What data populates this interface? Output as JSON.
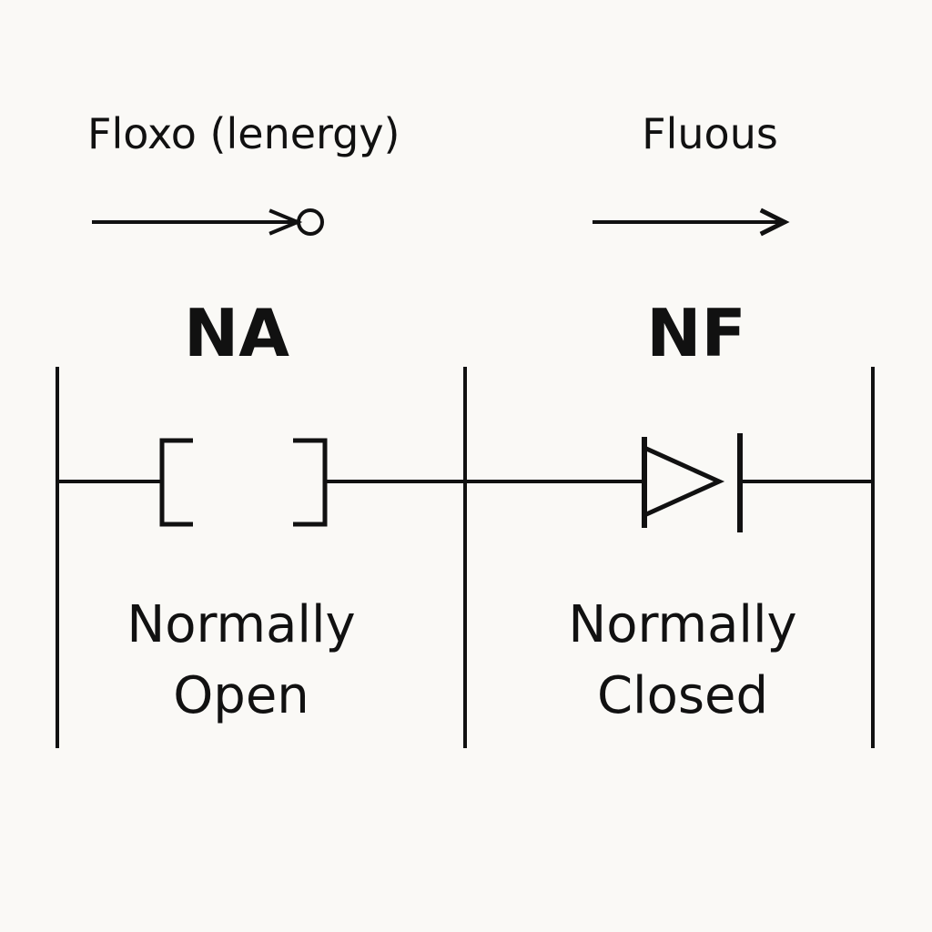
{
  "left": {
    "flow_label": "Floxo (lenergy)",
    "code": "NA",
    "description_line1": "Normally",
    "description_line2": "Open"
  },
  "right": {
    "flow_label": "Fluous",
    "code": "NF",
    "description_line1": "Normally",
    "description_line2": "Closed"
  },
  "colors": {
    "background": "#faf9f6",
    "ink": "#111111"
  },
  "icons": {
    "left_flow": "arrow-with-circle-icon",
    "right_flow": "arrow-right-icon",
    "left_contact": "open-bracket-contact-symbol",
    "right_contact": "triangle-bar-contact-symbol"
  }
}
